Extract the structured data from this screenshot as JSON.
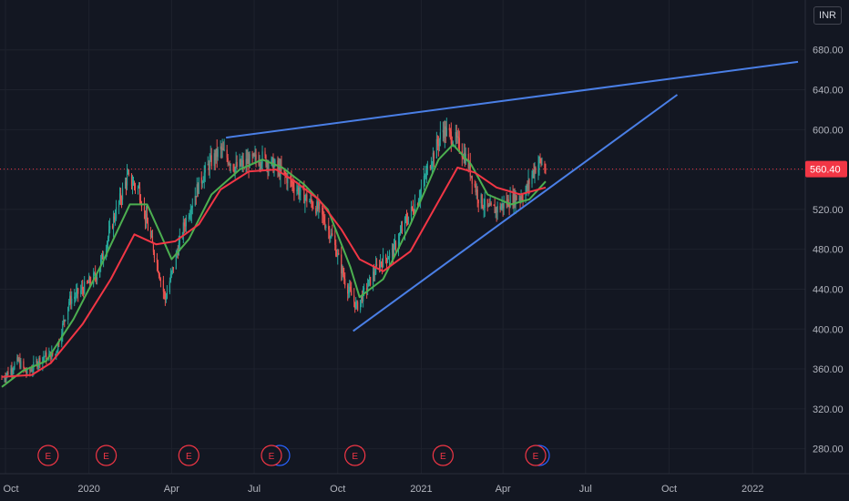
{
  "currency_label": "INR",
  "top_tick_partial": "7     0",
  "colors": {
    "background": "#131722",
    "grid": "#1e222d",
    "up": "#26a69a",
    "down": "#ef5350",
    "ma_fast": "#4caf50",
    "ma_slow": "#f23645",
    "trendline": "#4a7fe6",
    "price_line": "#f23645",
    "event_marker": "#f23645",
    "dividend_marker": "#2962ff"
  },
  "chart_data": {
    "type": "candlestick",
    "title": "",
    "x_ticks": [
      "Oct",
      "2020",
      "Apr",
      "Jul",
      "Oct",
      "2021",
      "Apr",
      "Jul",
      "Oct",
      "2022"
    ],
    "y_ticks": [
      "680.00",
      "640.00",
      "600.00",
      "560.00",
      "520.00",
      "480.00",
      "440.00",
      "400.00",
      "360.00",
      "320.00",
      "280.00"
    ],
    "y_tick_values": [
      680,
      640,
      600,
      560,
      520,
      480,
      440,
      400,
      360,
      320,
      280
    ],
    "ylim": [
      255,
      730
    ],
    "xlim": [
      "2019-09-25",
      "2022-02-28"
    ],
    "last_price": "560.40",
    "last_price_value": 560.4,
    "price_path": [
      [
        "2019-09-27",
        350
      ],
      [
        "2019-10-15",
        368
      ],
      [
        "2019-10-25",
        355
      ],
      [
        "2019-11-10",
        372
      ],
      [
        "2019-11-25",
        375
      ],
      [
        "2019-12-10",
        428
      ],
      [
        "2019-12-25",
        440
      ],
      [
        "2020-01-10",
        455
      ],
      [
        "2020-01-28",
        510
      ],
      [
        "2020-02-12",
        552
      ],
      [
        "2020-02-25",
        540
      ],
      [
        "2020-03-05",
        505
      ],
      [
        "2020-03-15",
        470
      ],
      [
        "2020-03-25",
        430
      ],
      [
        "2020-04-05",
        470
      ],
      [
        "2020-04-15",
        505
      ],
      [
        "2020-05-01",
        545
      ],
      [
        "2020-05-12",
        565
      ],
      [
        "2020-05-25",
        580
      ],
      [
        "2020-06-10",
        562
      ],
      [
        "2020-06-25",
        568
      ],
      [
        "2020-07-10",
        572
      ],
      [
        "2020-07-25",
        562
      ],
      [
        "2020-08-10",
        548
      ],
      [
        "2020-08-25",
        533
      ],
      [
        "2020-09-10",
        520
      ],
      [
        "2020-09-25",
        492
      ],
      [
        "2020-10-10",
        445
      ],
      [
        "2020-10-22",
        422
      ],
      [
        "2020-11-01",
        440
      ],
      [
        "2020-11-15",
        465
      ],
      [
        "2020-12-01",
        478
      ],
      [
        "2020-12-15",
        508
      ],
      [
        "2020-12-28",
        530
      ],
      [
        "2021-01-10",
        565
      ],
      [
        "2021-01-25",
        600
      ],
      [
        "2021-02-08",
        590
      ],
      [
        "2021-02-20",
        570
      ],
      [
        "2021-03-05",
        532
      ],
      [
        "2021-03-15",
        520
      ],
      [
        "2021-03-25",
        520
      ],
      [
        "2021-04-10",
        530
      ],
      [
        "2021-04-25",
        535
      ],
      [
        "2021-05-05",
        560
      ],
      [
        "2021-05-12",
        568
      ],
      [
        "2021-05-18",
        560.4
      ]
    ],
    "series": [
      {
        "name": "",
        "kind": "moving-average",
        "color": "#4caf50",
        "points": [
          [
            "2019-09-27",
            342
          ],
          [
            "2019-10-20",
            358
          ],
          [
            "2019-11-15",
            368
          ],
          [
            "2019-12-15",
            410
          ],
          [
            "2020-01-15",
            465
          ],
          [
            "2020-02-15",
            525
          ],
          [
            "2020-03-05",
            525
          ],
          [
            "2020-03-20",
            495
          ],
          [
            "2020-04-01",
            470
          ],
          [
            "2020-04-20",
            490
          ],
          [
            "2020-05-15",
            535
          ],
          [
            "2020-06-15",
            560
          ],
          [
            "2020-07-10",
            570
          ],
          [
            "2020-08-01",
            562
          ],
          [
            "2020-08-25",
            545
          ],
          [
            "2020-09-20",
            520
          ],
          [
            "2020-10-15",
            462
          ],
          [
            "2020-10-25",
            432
          ],
          [
            "2020-11-20",
            450
          ],
          [
            "2020-12-20",
            505
          ],
          [
            "2021-01-20",
            570
          ],
          [
            "2021-02-05",
            585
          ],
          [
            "2021-02-25",
            565
          ],
          [
            "2021-03-15",
            535
          ],
          [
            "2021-04-10",
            525
          ],
          [
            "2021-04-30",
            530
          ],
          [
            "2021-05-18",
            548
          ]
        ]
      },
      {
        "name": "",
        "kind": "moving-average",
        "color": "#f23645",
        "points": [
          [
            "2019-09-27",
            352
          ],
          [
            "2019-10-30",
            354
          ],
          [
            "2019-11-20",
            366
          ],
          [
            "2019-12-25",
            405
          ],
          [
            "2020-01-25",
            450
          ],
          [
            "2020-02-20",
            495
          ],
          [
            "2020-03-15",
            485
          ],
          [
            "2020-04-05",
            488
          ],
          [
            "2020-05-01",
            505
          ],
          [
            "2020-05-25",
            540
          ],
          [
            "2020-06-25",
            558
          ],
          [
            "2020-07-25",
            560
          ],
          [
            "2020-08-15",
            548
          ],
          [
            "2020-09-10",
            530
          ],
          [
            "2020-10-05",
            500
          ],
          [
            "2020-10-25",
            470
          ],
          [
            "2020-11-20",
            458
          ],
          [
            "2020-12-20",
            478
          ],
          [
            "2021-01-15",
            520
          ],
          [
            "2021-02-10",
            562
          ],
          [
            "2021-03-01",
            557
          ],
          [
            "2021-03-25",
            542
          ],
          [
            "2021-04-20",
            535
          ],
          [
            "2021-05-18",
            542
          ]
        ]
      }
    ],
    "trendlines": [
      {
        "from": [
          "2020-05-31",
          592
        ],
        "to": [
          "2022-02-20",
          668
        ]
      },
      {
        "from": [
          "2020-10-18",
          398
        ],
        "to": [
          "2021-10-10",
          635
        ]
      }
    ],
    "events": [
      {
        "label": "E",
        "date": "2019-11-17"
      },
      {
        "label": "E",
        "date": "2020-01-20"
      },
      {
        "label": "E",
        "date": "2020-04-20"
      },
      {
        "label": "E",
        "date": "2020-07-20"
      },
      {
        "label": "E",
        "date": "2020-10-20"
      },
      {
        "label": "E",
        "date": "2021-01-25"
      },
      {
        "label": "E",
        "date": "2021-05-07"
      }
    ],
    "dividends": [
      "2020-07-23",
      "2021-05-05"
    ],
    "grid": true
  }
}
